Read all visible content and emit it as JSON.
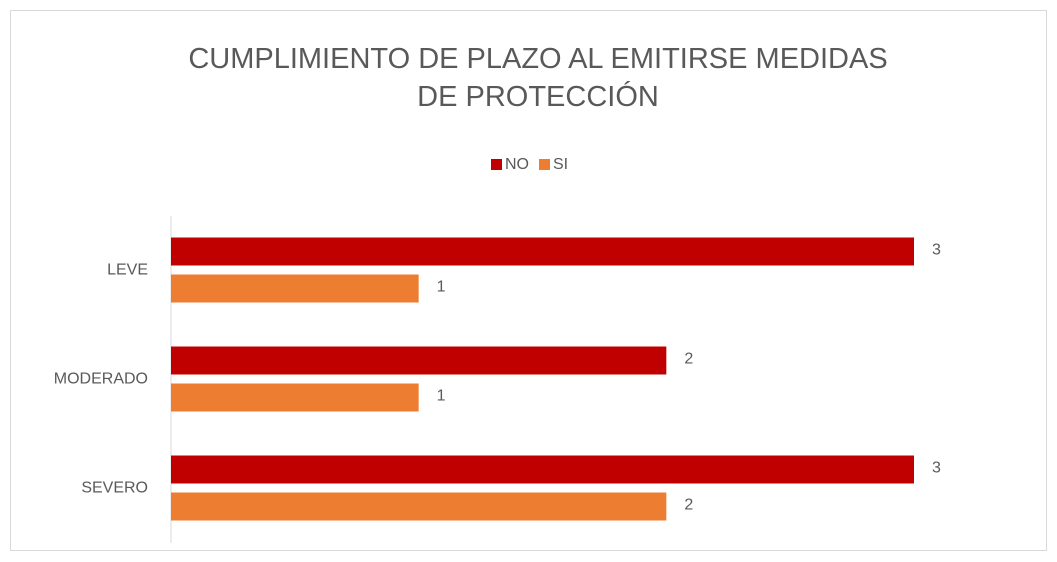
{
  "chart_data": {
    "type": "bar",
    "orientation": "horizontal",
    "title": "CUMPLIMIENTO DE PLAZO AL EMITIRSE MEDIDAS DE PROTECCIÓN",
    "categories": [
      "LEVE",
      "MODERADO",
      "SEVERO"
    ],
    "series": [
      {
        "name": "NO",
        "color": "#c00000",
        "values": [
          3,
          2,
          3
        ]
      },
      {
        "name": "SI",
        "color": "#ed7d31",
        "values": [
          1,
          1,
          2
        ]
      }
    ],
    "xlim": [
      0,
      3
    ],
    "legend": "top"
  }
}
